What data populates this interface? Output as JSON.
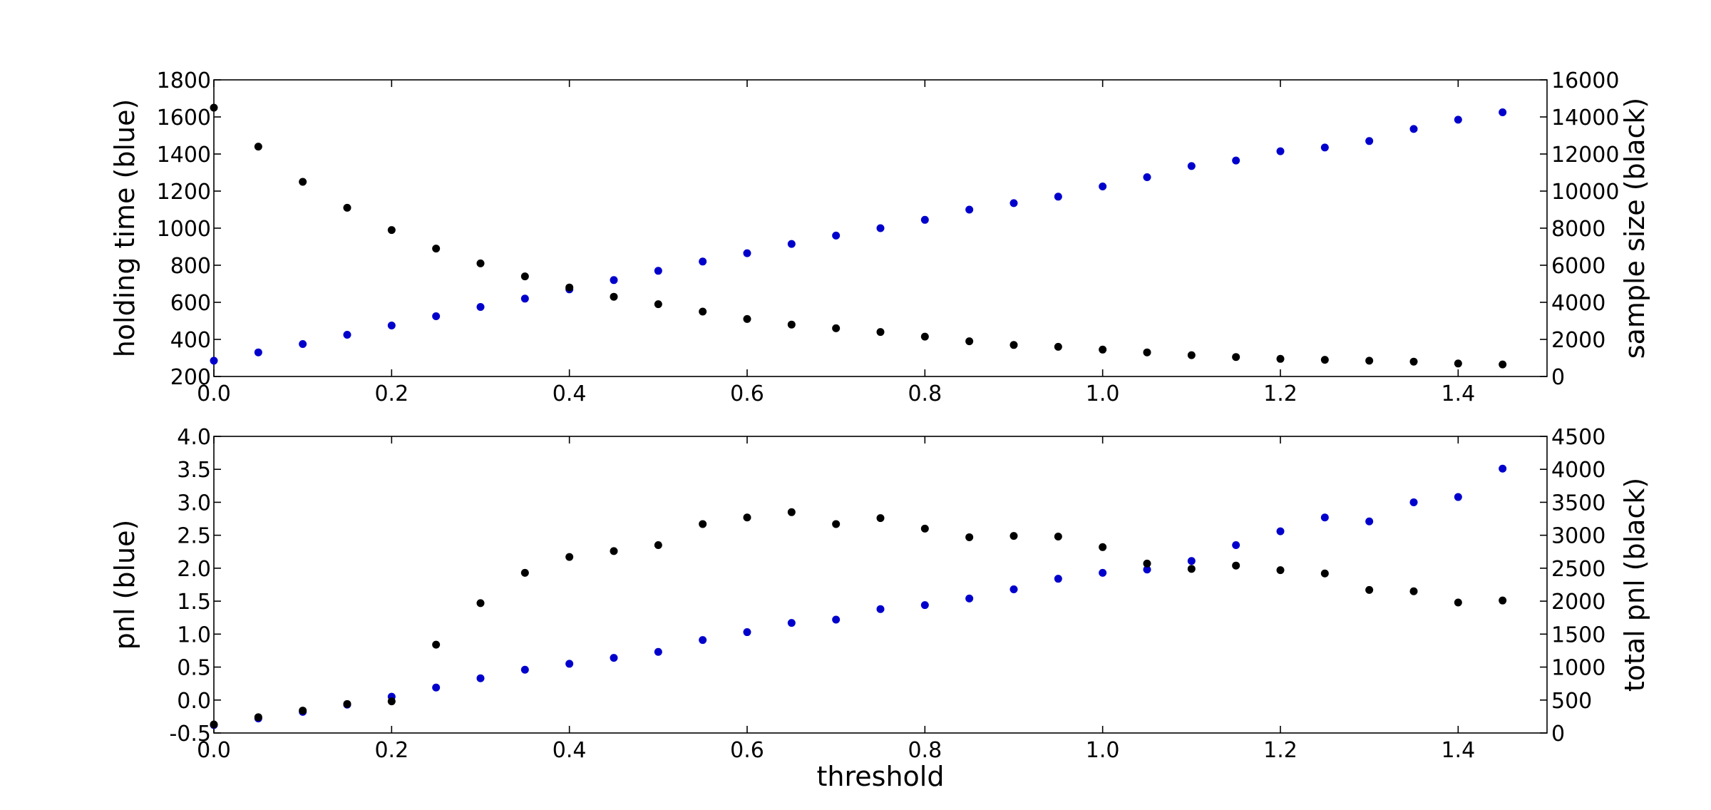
{
  "colors": {
    "blue": "#0000cc",
    "black": "#000000"
  },
  "chart_data": [
    {
      "type": "scatter",
      "xlabel": "",
      "ylabel_left": "holding time (blue)",
      "ylabel_right": "sample size (black)",
      "xlim": [
        0.0,
        1.5
      ],
      "ylim_left": [
        200,
        1800
      ],
      "ylim_right": [
        0,
        16000
      ],
      "xticks": [
        "0.0",
        "0.2",
        "0.4",
        "0.6",
        "0.8",
        "1.0",
        "1.2",
        "1.4"
      ],
      "yticks_left": [
        "200",
        "400",
        "600",
        "800",
        "1000",
        "1200",
        "1400",
        "1600",
        "1800"
      ],
      "yticks_right": [
        "0",
        "2000",
        "4000",
        "6000",
        "8000",
        "10000",
        "12000",
        "14000",
        "16000"
      ],
      "grid": false,
      "x": [
        0.0,
        0.05,
        0.1,
        0.15,
        0.2,
        0.25,
        0.3,
        0.35,
        0.4,
        0.45,
        0.5,
        0.55,
        0.6,
        0.65,
        0.7,
        0.75,
        0.8,
        0.85,
        0.9,
        0.95,
        1.0,
        1.05,
        1.1,
        1.15,
        1.2,
        1.25,
        1.3,
        1.35,
        1.4,
        1.45
      ],
      "series": [
        {
          "axis": "left",
          "color": "#0000cc",
          "values": [
            285,
            330,
            375,
            425,
            475,
            525,
            575,
            620,
            670,
            720,
            770,
            820,
            865,
            915,
            960,
            1000,
            1045,
            1100,
            1135,
            1170,
            1225,
            1275,
            1335,
            1365,
            1415,
            1435,
            1470,
            1535,
            1585,
            1625
          ]
        },
        {
          "axis": "right",
          "color": "#000000",
          "values": [
            14500,
            12400,
            10500,
            9100,
            7900,
            6900,
            6100,
            5400,
            4800,
            4300,
            3900,
            3500,
            3100,
            2800,
            2600,
            2400,
            2150,
            1900,
            1700,
            1600,
            1450,
            1300,
            1150,
            1050,
            950,
            900,
            850,
            800,
            700,
            650
          ]
        }
      ]
    },
    {
      "type": "scatter",
      "xlabel": "threshold",
      "ylabel_left": "pnl (blue)",
      "ylabel_right": "total pnl (black)",
      "xlim": [
        0.0,
        1.5
      ],
      "ylim_left": [
        -0.5,
        4.0
      ],
      "ylim_right": [
        0,
        4500
      ],
      "xticks": [
        "0.0",
        "0.2",
        "0.4",
        "0.6",
        "0.8",
        "1.0",
        "1.2",
        "1.4"
      ],
      "yticks_left": [
        "-0.5",
        "0.0",
        "0.5",
        "1.0",
        "1.5",
        "2.0",
        "2.5",
        "3.0",
        "3.5",
        "4.0"
      ],
      "yticks_right": [
        "0",
        "500",
        "1000",
        "1500",
        "2000",
        "2500",
        "3000",
        "3500",
        "4000",
        "4500"
      ],
      "grid": false,
      "x": [
        0.0,
        0.05,
        0.1,
        0.15,
        0.2,
        0.25,
        0.3,
        0.35,
        0.4,
        0.45,
        0.5,
        0.55,
        0.6,
        0.65,
        0.7,
        0.75,
        0.8,
        0.85,
        0.9,
        0.95,
        1.0,
        1.05,
        1.1,
        1.15,
        1.2,
        1.25,
        1.3,
        1.35,
        1.4,
        1.45
      ],
      "series": [
        {
          "axis": "left",
          "color": "#0000cc",
          "values": [
            -0.38,
            -0.28,
            -0.18,
            -0.07,
            0.05,
            0.19,
            0.33,
            0.46,
            0.55,
            0.64,
            0.73,
            0.91,
            1.03,
            1.17,
            1.22,
            1.38,
            1.44,
            1.54,
            1.68,
            1.84,
            1.93,
            1.98,
            2.11,
            2.35,
            2.56,
            2.77,
            2.71,
            3.0,
            3.08,
            3.51
          ]
        },
        {
          "axis": "right",
          "color": "#000000",
          "values": [
            130,
            240,
            340,
            440,
            480,
            1340,
            1970,
            2430,
            2670,
            2760,
            2850,
            3170,
            3270,
            3350,
            3170,
            3260,
            3100,
            2970,
            2990,
            2980,
            2820,
            2570,
            2490,
            2540,
            2470,
            2420,
            2170,
            2150,
            1980,
            2010
          ]
        }
      ]
    }
  ]
}
